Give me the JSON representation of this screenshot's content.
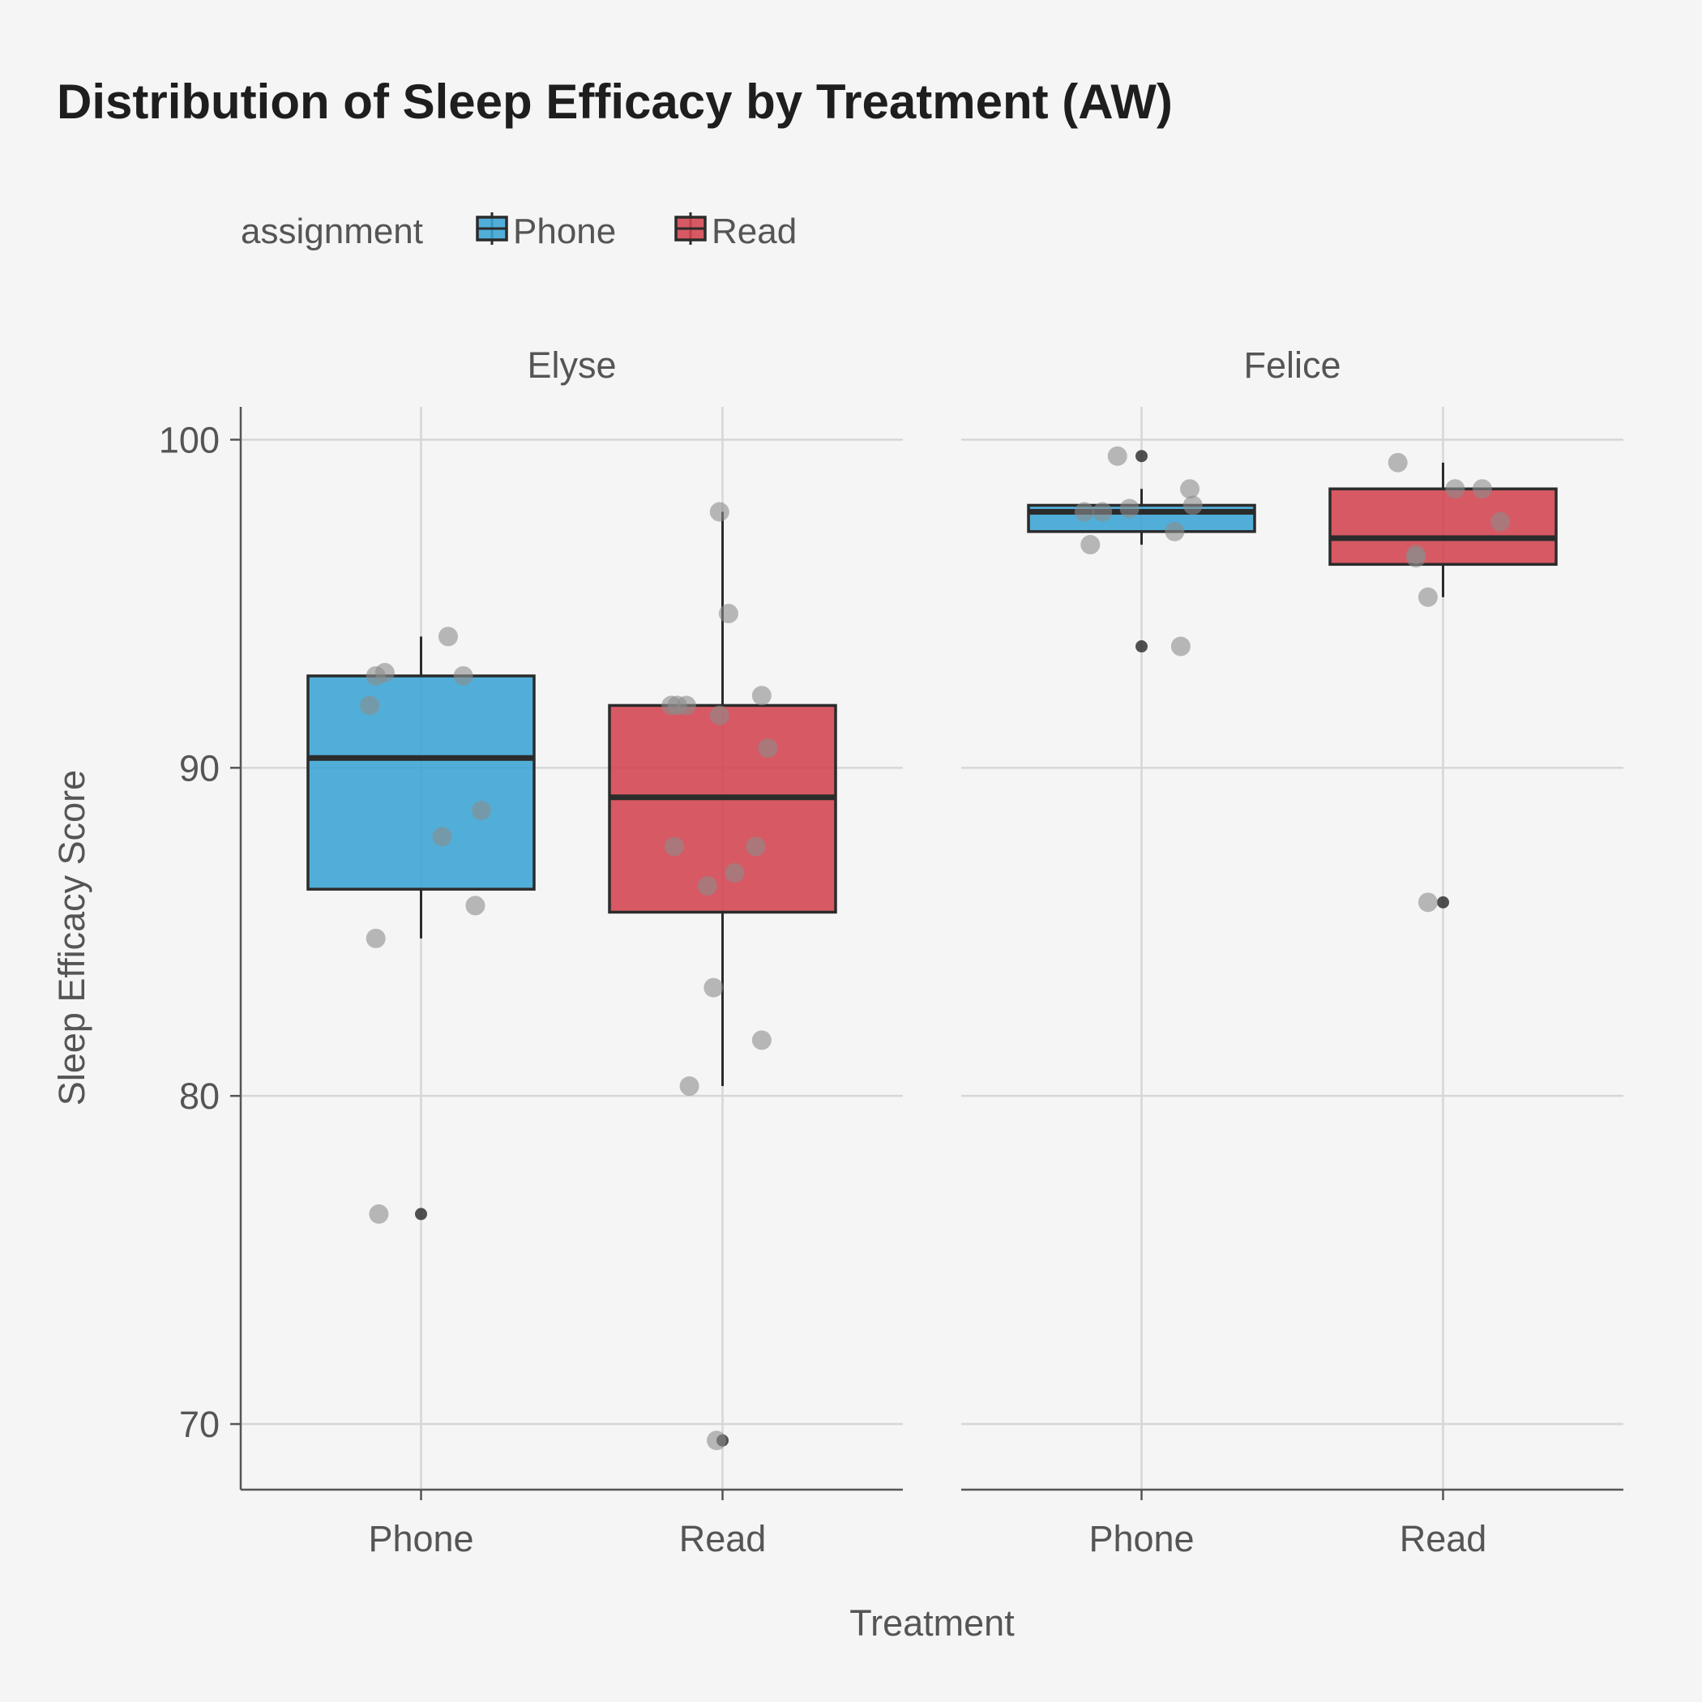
{
  "chart_data": {
    "type": "box",
    "title": "Distribution of Sleep Efficacy by Treatment (AW)",
    "xlabel": "Treatment",
    "ylabel": "Sleep Efficacy Score",
    "ylim": [
      68,
      101
    ],
    "yticks": [
      70,
      80,
      90,
      100
    ],
    "categories": [
      "Phone",
      "Read"
    ],
    "legend": {
      "title": "assignment",
      "position": "top-left",
      "entries": [
        {
          "label": "Phone",
          "color": "#3aa4d4"
        },
        {
          "label": "Read",
          "color": "#d3434f"
        }
      ]
    },
    "colors": {
      "Phone": "#3aa4d4",
      "Read": "#d3434f",
      "points": "#8c8c8c",
      "outlier": "#333333"
    },
    "grid": true,
    "facets": [
      {
        "name": "Elyse",
        "groups": [
          {
            "category": "Phone",
            "box": {
              "q1": 86.3,
              "median": 90.3,
              "q3": 92.8,
              "whisker_low": 84.8,
              "whisker_high": 94.0
            },
            "outliers": [
              76.4
            ],
            "points": [
              {
                "x": -0.15,
                "y": 92.8
              },
              {
                "x": -0.12,
                "y": 92.9
              },
              {
                "x": -0.17,
                "y": 91.9
              },
              {
                "x": 0.09,
                "y": 94.0
              },
              {
                "x": 0.14,
                "y": 92.8
              },
              {
                "x": 0.2,
                "y": 88.7
              },
              {
                "x": 0.07,
                "y": 87.9
              },
              {
                "x": 0.18,
                "y": 85.8
              },
              {
                "x": -0.15,
                "y": 84.8
              },
              {
                "x": -0.14,
                "y": 76.4
              }
            ]
          },
          {
            "category": "Read",
            "box": {
              "q1": 85.6,
              "median": 89.1,
              "q3": 91.9,
              "whisker_low": 80.3,
              "whisker_high": 97.8
            },
            "outliers": [
              69.5
            ],
            "points": [
              {
                "x": -0.01,
                "y": 97.8
              },
              {
                "x": 0.02,
                "y": 94.7
              },
              {
                "x": 0.13,
                "y": 92.2
              },
              {
                "x": -0.17,
                "y": 91.9
              },
              {
                "x": -0.15,
                "y": 91.9
              },
              {
                "x": -0.12,
                "y": 91.9
              },
              {
                "x": -0.01,
                "y": 91.6
              },
              {
                "x": 0.15,
                "y": 90.6
              },
              {
                "x": -0.16,
                "y": 87.6
              },
              {
                "x": 0.11,
                "y": 87.6
              },
              {
                "x": 0.04,
                "y": 86.8
              },
              {
                "x": -0.05,
                "y": 86.4
              },
              {
                "x": -0.03,
                "y": 83.3
              },
              {
                "x": 0.13,
                "y": 81.7
              },
              {
                "x": -0.11,
                "y": 80.3
              },
              {
                "x": -0.02,
                "y": 69.5
              }
            ]
          }
        ]
      },
      {
        "name": "Felice",
        "groups": [
          {
            "category": "Phone",
            "box": {
              "q1": 97.2,
              "median": 97.8,
              "q3": 98.0,
              "whisker_low": 96.8,
              "whisker_high": 98.5
            },
            "outliers": [
              99.5,
              93.7
            ],
            "points": [
              {
                "x": -0.08,
                "y": 99.5
              },
              {
                "x": 0.16,
                "y": 98.5
              },
              {
                "x": 0.17,
                "y": 98.0
              },
              {
                "x": -0.04,
                "y": 97.9
              },
              {
                "x": -0.13,
                "y": 97.8
              },
              {
                "x": -0.19,
                "y": 97.8
              },
              {
                "x": 0.11,
                "y": 97.2
              },
              {
                "x": -0.17,
                "y": 96.8
              },
              {
                "x": 0.13,
                "y": 93.7
              }
            ]
          },
          {
            "category": "Read",
            "box": {
              "q1": 96.2,
              "median": 97.0,
              "q3": 98.5,
              "whisker_low": 95.2,
              "whisker_high": 99.3
            },
            "outliers": [
              85.9
            ],
            "points": [
              {
                "x": -0.15,
                "y": 99.3
              },
              {
                "x": 0.04,
                "y": 98.5
              },
              {
                "x": 0.13,
                "y": 98.5
              },
              {
                "x": 0.19,
                "y": 97.5
              },
              {
                "x": -0.09,
                "y": 96.5
              },
              {
                "x": -0.09,
                "y": 96.4
              },
              {
                "x": -0.05,
                "y": 95.2
              },
              {
                "x": -0.05,
                "y": 85.9
              }
            ]
          }
        ]
      }
    ]
  }
}
